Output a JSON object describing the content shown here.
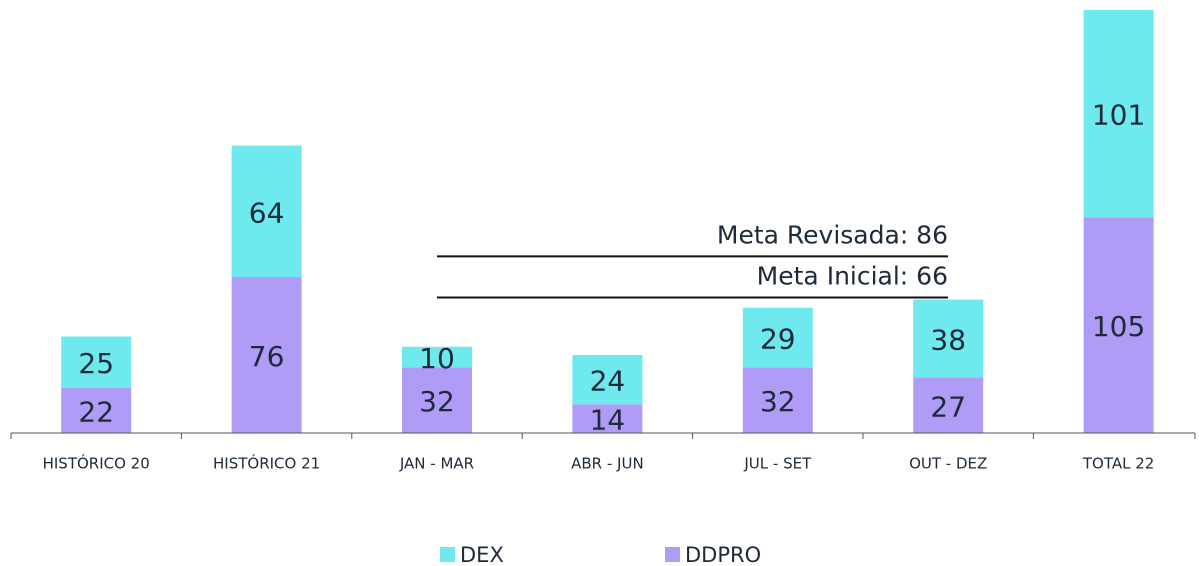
{
  "chart_data": {
    "type": "bar",
    "stacked": true,
    "categories": [
      "HISTÓRICO 20",
      "HISTÓRICO 21",
      "JAN - MAR",
      "ABR - JUN",
      "JUL - SET",
      "OUT - DEZ",
      "TOTAL 22"
    ],
    "series": [
      {
        "name": "DEX",
        "color": "#6ee9ee",
        "values": [
          25,
          64,
          10,
          24,
          29,
          38,
          101
        ]
      },
      {
        "name": "DDPRO",
        "color": "#b09cf7",
        "values": [
          22,
          76,
          32,
          14,
          32,
          27,
          105
        ]
      }
    ],
    "reference_lines": [
      {
        "label": "Meta Revisada: 86",
        "value": 86
      },
      {
        "label": "Meta Inicial: 66",
        "value": 66
      }
    ],
    "ylim": [
      0,
      207
    ],
    "legend": "bottom"
  }
}
